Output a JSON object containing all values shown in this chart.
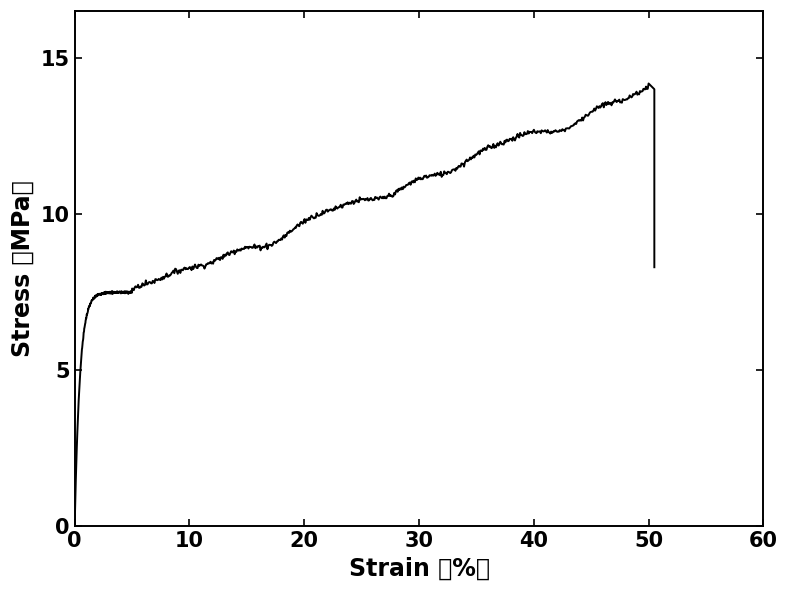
{
  "xlabel": "Strain （%）",
  "ylabel": "Stress （MPa）",
  "xlim": [
    0,
    60
  ],
  "ylim": [
    0,
    16.5
  ],
  "xticks": [
    0,
    10,
    20,
    30,
    40,
    50,
    60
  ],
  "yticks": [
    0,
    5,
    10,
    15
  ],
  "line_color": "#000000",
  "line_width": 1.4,
  "bg_color": "#ffffff",
  "font_size_label": 17,
  "font_size_tick": 15
}
